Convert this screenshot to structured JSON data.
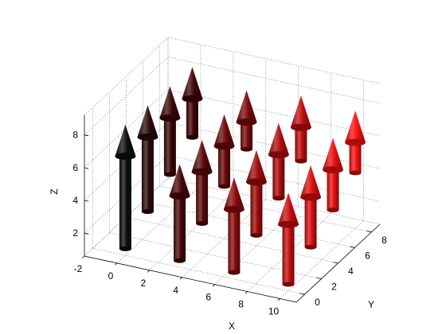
{
  "chart_data": {
    "type": "3d-quiver",
    "title": "",
    "xlabel": "X",
    "ylabel": "Y",
    "zlabel": "Z",
    "xlim": [
      -2,
      11
    ],
    "ylim": [
      -1,
      9
    ],
    "zlim": [
      0.6,
      9.2
    ],
    "xticks": [
      -2,
      0,
      2,
      4,
      6,
      8,
      10
    ],
    "yticks": [
      0,
      2,
      4,
      6,
      8
    ],
    "zticks": [
      2,
      4,
      6,
      8
    ],
    "grid": true,
    "arrows": [
      {
        "x": 0,
        "y": 0,
        "z0": 1.0,
        "z1": 8.6,
        "color": "#0d0d0d"
      },
      {
        "x": 0,
        "y": 2.67,
        "z0": 2.0,
        "z1": 8.5,
        "color": "#2a0b0b"
      },
      {
        "x": 0,
        "y": 5.33,
        "z0": 3.0,
        "z1": 8.4,
        "color": "#3a0707"
      },
      {
        "x": 0,
        "y": 8,
        "z0": 4.0,
        "z1": 8.3,
        "color": "#3f0303"
      },
      {
        "x": 3.33,
        "y": 0,
        "z0": 1.0,
        "z1": 6.9,
        "color": "#4a0606"
      },
      {
        "x": 3.33,
        "y": 2.67,
        "z0": 2.0,
        "z1": 7.1,
        "color": "#5a0707"
      },
      {
        "x": 3.33,
        "y": 5.33,
        "z0": 3.0,
        "z1": 7.4,
        "color": "#6a0808"
      },
      {
        "x": 3.33,
        "y": 8,
        "z0": 4.0,
        "z1": 7.6,
        "color": "#7a0909"
      },
      {
        "x": 6.67,
        "y": 0,
        "z0": 1.0,
        "z1": 6.8,
        "color": "#8a0a0a"
      },
      {
        "x": 6.67,
        "y": 2.67,
        "z0": 2.0,
        "z1": 7.2,
        "color": "#9c0b0b"
      },
      {
        "x": 6.67,
        "y": 5.33,
        "z0": 3.0,
        "z1": 7.6,
        "color": "#ae0c0c"
      },
      {
        "x": 6.67,
        "y": 8,
        "z0": 4.0,
        "z1": 8.0,
        "color": "#bf0d0d"
      },
      {
        "x": 10,
        "y": 0,
        "z0": 1.0,
        "z1": 6.6,
        "color": "#c80d0d"
      },
      {
        "x": 10,
        "y": 2.67,
        "z0": 2.0,
        "z1": 7.0,
        "color": "#d80e0e"
      },
      {
        "x": 10,
        "y": 5.33,
        "z0": 3.0,
        "z1": 7.4,
        "color": "#e80f0f"
      },
      {
        "x": 10,
        "y": 8,
        "z0": 4.0,
        "z1": 7.8,
        "color": "#f81010"
      }
    ]
  }
}
